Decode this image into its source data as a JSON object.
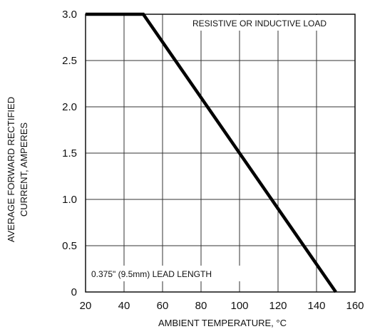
{
  "chart_data": {
    "type": "line",
    "title": "",
    "xlabel": "AMBIENT TEMPERATURE, °C",
    "ylabel_lines": [
      "AVERAGE FORWARD RECTIFIED",
      "CURRENT, AMPERES"
    ],
    "xlim": [
      20,
      160
    ],
    "ylim": [
      0,
      3.0
    ],
    "x_ticks": [
      20,
      40,
      60,
      80,
      100,
      120,
      140,
      160
    ],
    "y_ticks": [
      0,
      0.5,
      1.0,
      1.5,
      2.0,
      2.5,
      3.0
    ],
    "x_tick_labels": [
      "20",
      "40",
      "60",
      "80",
      "100",
      "120",
      "140",
      "160"
    ],
    "y_tick_labels": [
      "0",
      "0.5",
      "1.0",
      "1.5",
      "2.0",
      "2.5",
      "3.0"
    ],
    "grid": true,
    "series": [
      {
        "x": [
          20,
          50,
          150
        ],
        "y": [
          3.0,
          3.0,
          0
        ],
        "color": "#000000"
      }
    ],
    "annotations": [
      {
        "text": "RESISTIVE OR INDUCTIVE LOAD",
        "position": "top-right"
      },
      {
        "text": "0.375\" (9.5mm) LEAD LENGTH",
        "position": "bottom-left"
      }
    ]
  }
}
